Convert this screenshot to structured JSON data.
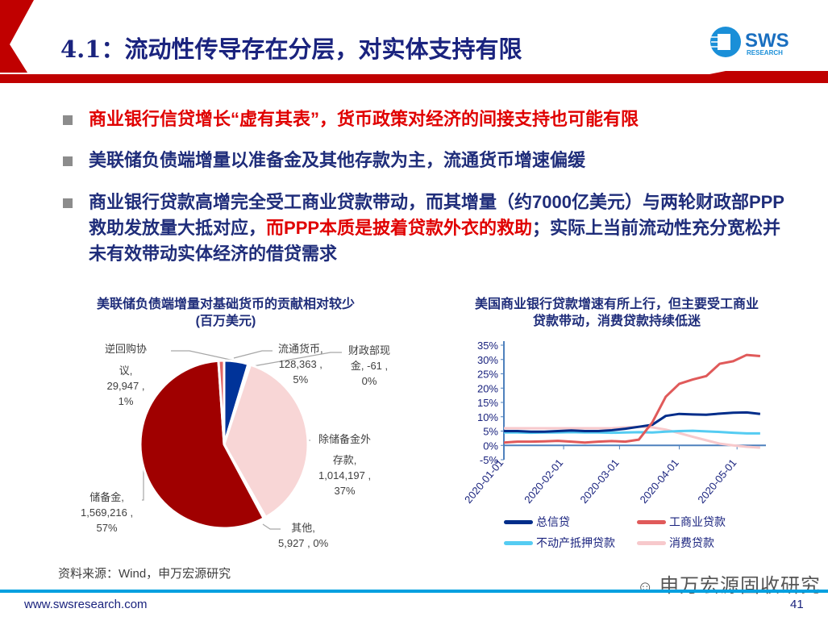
{
  "header": {
    "title": "4.1：流动性传导存在分层，对实体支持有限",
    "logo_text": "SWS",
    "logo_sub": "RESEARCH"
  },
  "bullets": [
    {
      "text": "商业银行信贷增长“虚有其表”，货币政策对经济的间接支持也可能有限",
      "red": true
    },
    {
      "text": "美联储负债端增量以准备金及其他存款为主，流通货币增速偏缓"
    },
    {
      "text_a": "商业银行贷款高增完全受工商业贷款带动，而其增量（约7000亿美元）与两轮财政部PPP救助发放量大抵对应，",
      "text_red": "而PPP本质是披着贷款外衣的救助",
      "text_b": "；实际上当前流动性充分宽松并未有效带动实体经济的借贷需求"
    }
  ],
  "chart_data": [
    {
      "type": "pie",
      "title": "美联储负债端增量对基础货币的贡献相对较少",
      "subtitle": "(百万美元)",
      "slices": [
        {
          "name": "流通货币,",
          "value": 128363,
          "pct": "5%",
          "label_value": "128,363 ,",
          "color": "#003399"
        },
        {
          "name": "财政部现金,",
          "value": -61,
          "pct": "0%",
          "label_value": "-61 ,",
          "color": "#e06666"
        },
        {
          "name": "除储备金外存款,",
          "value": 1014197,
          "pct": "37%",
          "label_value": "1,014,197 ,",
          "color": "#f8d6d6"
        },
        {
          "name": "其他,",
          "value": 5927,
          "pct": "0%",
          "label_value": "5,927 ,",
          "color": "#ffffff"
        },
        {
          "name": "储备金,",
          "value": 1569216,
          "pct": "57%",
          "label_value": "1,569,216 ,",
          "color": "#a00000"
        },
        {
          "name": "逆回购协议,",
          "value": 29947,
          "pct": "1%",
          "label_value": "29,947 ,",
          "color": "#e06666"
        }
      ]
    },
    {
      "type": "line",
      "title": "美国商业银行贷款增速有所上行，但主要受工商业贷款带动，消费贷款持续低迷",
      "title_lines": [
        "美国商业银行贷款增速有所上行，但主要受工商业",
        "贷款带动，消费贷款持续低迷"
      ],
      "ylim": [
        -5,
        35
      ],
      "yticks": [
        "35%",
        "30%",
        "25%",
        "20%",
        "15%",
        "10%",
        "5%",
        "0%",
        "-5%"
      ],
      "ytick_values": [
        35,
        30,
        25,
        20,
        15,
        10,
        5,
        0,
        -5
      ],
      "xticks": [
        "2020-01-01",
        "2020-02-01",
        "2020-03-01",
        "2020-04-01",
        "2020-05-01"
      ],
      "x": [
        "2020-01-01",
        "2020-01-08",
        "2020-01-15",
        "2020-01-22",
        "2020-01-29",
        "2020-02-05",
        "2020-02-12",
        "2020-02-19",
        "2020-02-26",
        "2020-03-04",
        "2020-03-11",
        "2020-03-18",
        "2020-03-25",
        "2020-04-01",
        "2020-04-08",
        "2020-04-15",
        "2020-04-22",
        "2020-04-29",
        "2020-05-06",
        "2020-05-13"
      ],
      "series": [
        {
          "name": "总信贷",
          "color": "#002d8a",
          "values": [
            5,
            5,
            4.8,
            4.8,
            5,
            5.2,
            5,
            5,
            5.3,
            5.8,
            6.5,
            7.2,
            10.3,
            11,
            10.8,
            10.7,
            11.1,
            11.4,
            11.5,
            11
          ]
        },
        {
          "name": "工商业贷款",
          "color": "#e05a5a",
          "values": [
            1,
            1.3,
            1.3,
            1.4,
            1.6,
            1.3,
            1,
            1.3,
            1.5,
            1.3,
            2,
            8,
            17,
            21.5,
            23,
            24.2,
            28.5,
            29.4,
            31.6,
            31.2
          ]
        },
        {
          "name": "不动产抵押贷款",
          "color": "#55ccf2",
          "values": [
            4.5,
            4.5,
            4.4,
            4.5,
            4.5,
            4.6,
            4.5,
            4.5,
            4.4,
            4.5,
            4.6,
            4.5,
            4.8,
            5,
            5.1,
            4.9,
            4.7,
            4.4,
            4.2,
            4.2
          ]
        },
        {
          "name": "消费贷款",
          "color": "#f7c9cc",
          "values": [
            6,
            6,
            6,
            6,
            6,
            6,
            6,
            6,
            6,
            6.3,
            6.5,
            6.3,
            5.5,
            4.3,
            3,
            1.8,
            0.6,
            0,
            -0.5,
            -0.8
          ]
        }
      ]
    }
  ],
  "footer": {
    "source": "资料来源：Wind，申万宏源研究",
    "url": "www.swsresearch.com",
    "page": "41",
    "watermark": "申万宏源固收研究"
  }
}
